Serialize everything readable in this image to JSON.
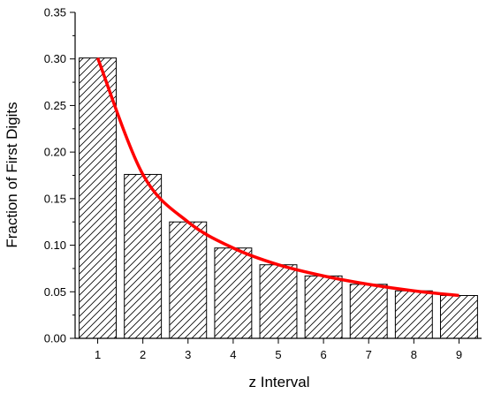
{
  "chart_data": {
    "type": "bar",
    "xlabel": "z Interval",
    "ylabel": "Fraction of First Digits",
    "categories": [
      "1",
      "2",
      "3",
      "4",
      "5",
      "6",
      "7",
      "8",
      "9"
    ],
    "series": [
      {
        "values": [
          0.301,
          0.176,
          0.125,
          0.097,
          0.079,
          0.067,
          0.058,
          0.051,
          0.046
        ],
        "pattern": "diagonal-hatch",
        "fill": "#ffffff",
        "stroke": "#000000"
      },
      {
        "type": "line",
        "x": [
          1,
          2,
          3,
          4,
          5,
          6,
          7,
          8,
          9
        ],
        "values": [
          0.301,
          0.176,
          0.125,
          0.097,
          0.079,
          0.067,
          0.058,
          0.051,
          0.046
        ],
        "color": "#ff0000"
      }
    ],
    "ylim": [
      0,
      0.35
    ],
    "xlim": [
      0.5,
      9.5
    ],
    "yticks": [
      "0.00",
      "0.05",
      "0.10",
      "0.15",
      "0.20",
      "0.25",
      "0.30",
      "0.35"
    ],
    "grid": false,
    "legend": "none"
  }
}
